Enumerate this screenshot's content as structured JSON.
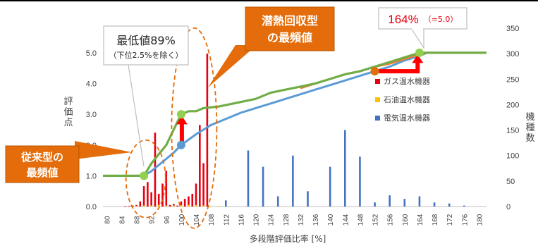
{
  "chart_data": {
    "type": "bar+line",
    "title": "",
    "xlabel": "多段階評価比率 [%]",
    "ylabel_left": "評価点",
    "ylabel_right": "機種数",
    "x_ticks": [
      80,
      84,
      88,
      92,
      96,
      100,
      104,
      108,
      112,
      116,
      120,
      124,
      128,
      132,
      136,
      140,
      144,
      148,
      152,
      156,
      160,
      164,
      168,
      172,
      176,
      180
    ],
    "x_range": [
      79,
      182
    ],
    "ylim_left": [
      0,
      5.8
    ],
    "y_ticks_left": [
      0.0,
      1.0,
      2.0,
      3.0,
      4.0,
      5.0
    ],
    "ylim_right": [
      0,
      350
    ],
    "y_ticks_right": [
      0,
      50,
      100,
      150,
      200,
      250,
      300,
      350
    ],
    "legend_placement": "right-middle",
    "colors": {
      "gas": "#e8000f",
      "oil": "#ffc000",
      "electric": "#4472c4",
      "curve_green": "#70ad47",
      "curve_orange": "#ed7d31",
      "curve_blue": "#5b9bd5",
      "callout_fill": "#e46c0a",
      "arrow": "#ff0000",
      "marker_green": "#92d050"
    },
    "series_bars": [
      {
        "name": "ガス温水機器",
        "color_key": "gas",
        "x": [
          85,
          86,
          87,
          88,
          89,
          90,
          91,
          92,
          93,
          94,
          95,
          96,
          97,
          98,
          99,
          100,
          101,
          102,
          103,
          104,
          105,
          106,
          107
        ],
        "values": [
          1,
          1,
          2,
          3,
          10,
          40,
          48,
          28,
          145,
          25,
          45,
          70,
          3,
          5,
          2,
          10,
          15,
          20,
          25,
          45,
          160,
          85,
          300
        ]
      },
      {
        "name": "石油温水機器",
        "color_key": "oil",
        "x": [
          88,
          90,
          92,
          94,
          96,
          98,
          100,
          102,
          104,
          106,
          108,
          110
        ],
        "values": [
          1,
          2,
          2,
          3,
          2,
          2,
          3,
          3,
          3,
          2,
          1,
          1
        ]
      },
      {
        "name": "電気温水機器",
        "color_key": "electric",
        "x": [
          112,
          118,
          122,
          126,
          130,
          134,
          140,
          144,
          148,
          152,
          156,
          160,
          164,
          168,
          172,
          176
        ],
        "values": [
          12,
          110,
          78,
          20,
          100,
          30,
          78,
          150,
          98,
          8,
          22,
          15,
          20,
          8,
          6,
          2
        ]
      }
    ],
    "series_lines": [
      {
        "color_key": "curve_green",
        "points": [
          [
            79,
            1.0
          ],
          [
            88,
            1.0
          ],
          [
            90,
            1.0
          ],
          [
            92,
            1.4
          ],
          [
            94,
            1.7
          ],
          [
            96,
            2.0
          ],
          [
            98,
            2.5
          ],
          [
            100,
            3.0
          ],
          [
            102,
            3.1
          ],
          [
            104,
            3.1
          ],
          [
            106,
            3.2
          ],
          [
            110,
            3.25
          ],
          [
            112,
            3.3
          ],
          [
            116,
            3.4
          ],
          [
            120,
            3.5
          ],
          [
            124,
            3.7
          ],
          [
            128,
            3.8
          ],
          [
            132,
            3.9
          ],
          [
            136,
            4.0
          ],
          [
            140,
            4.15
          ],
          [
            144,
            4.3
          ],
          [
            148,
            4.4
          ],
          [
            152,
            4.55
          ],
          [
            156,
            4.7
          ],
          [
            160,
            4.85
          ],
          [
            164,
            5.0
          ],
          [
            182,
            5.0
          ]
        ]
      },
      {
        "color_key": "curve_orange",
        "points": [
          [
            132,
            3.85
          ],
          [
            136,
            4.0
          ],
          [
            140,
            4.15
          ],
          [
            144,
            4.3
          ],
          [
            148,
            4.4
          ],
          [
            152,
            4.55
          ],
          [
            156,
            4.65
          ],
          [
            160,
            4.8
          ],
          [
            164,
            4.95
          ],
          [
            166,
            5.0
          ],
          [
            182,
            5.0
          ]
        ]
      },
      {
        "color_key": "curve_blue",
        "points": [
          [
            90,
            1.0
          ],
          [
            92,
            1.15
          ],
          [
            94,
            1.35
          ],
          [
            96,
            1.55
          ],
          [
            98,
            1.75
          ],
          [
            100,
            2.0
          ],
          [
            104,
            2.35
          ],
          [
            108,
            2.65
          ],
          [
            112,
            2.85
          ],
          [
            116,
            3.05
          ],
          [
            120,
            3.2
          ],
          [
            124,
            3.35
          ],
          [
            128,
            3.5
          ],
          [
            132,
            3.65
          ],
          [
            136,
            3.8
          ],
          [
            140,
            3.95
          ],
          [
            144,
            4.1
          ],
          [
            148,
            4.25
          ],
          [
            152,
            4.4
          ],
          [
            156,
            4.55
          ],
          [
            160,
            4.75
          ],
          [
            164,
            4.9
          ],
          [
            166,
            5.0
          ],
          [
            182,
            5.0
          ]
        ]
      }
    ],
    "markers": [
      {
        "x": 90,
        "y": 1.0,
        "color_key": "marker_green"
      },
      {
        "x": 100,
        "y": 3.0,
        "color_key": "marker_green"
      },
      {
        "x": 100,
        "y": 2.0,
        "color_key": "curve_blue"
      },
      {
        "x": 152,
        "y": 4.4,
        "color_key": "callout_fill"
      },
      {
        "x": 164,
        "y": 5.0,
        "color_key": "marker_green"
      }
    ],
    "annotations": {
      "min_value": {
        "line1": "最低値89%",
        "line2": "（下位2.5%を除く）"
      },
      "latent": {
        "line1": "潜熱回収型",
        "line2": "の最頻値"
      },
      "conventional": {
        "line1": "従来型の",
        "line2": "最頻値"
      },
      "max_value": {
        "main": "164%",
        "sub": "（=5.0）"
      }
    }
  }
}
